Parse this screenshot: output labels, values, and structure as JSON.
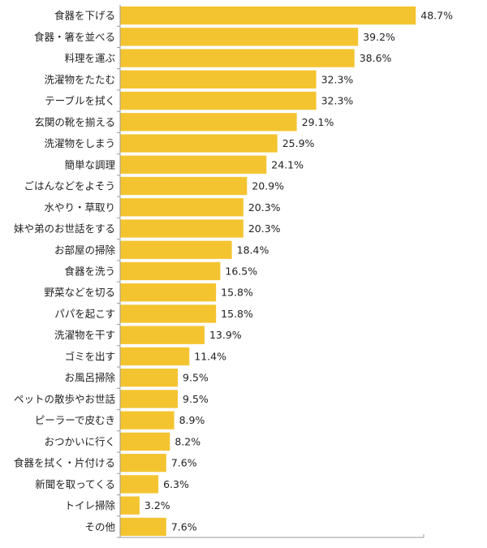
{
  "chart_data": {
    "type": "bar",
    "orientation": "horizontal",
    "categories": [
      "食器を下げる",
      "食器・箸を並べる",
      "料理を運ぶ",
      "洗濯物をたたむ",
      "テーブルを拭く",
      "玄関の靴を揃える",
      "洗濯物をしまう",
      "簡単な調理",
      "ごはんなどをよそう",
      "水やり・草取り",
      "妹や弟のお世話をする",
      "お部屋の掃除",
      "食器を洗う",
      "野菜などを切る",
      "パパを起こす",
      "洗濯物を干す",
      "ゴミを出す",
      "お風呂掃除",
      "ペットの散歩やお世話",
      "ピーラーで皮むき",
      "おつかいに行く",
      "食器を拭く・片付ける",
      "新聞を取ってくる",
      "トイレ掃除",
      "その他"
    ],
    "values": [
      48.7,
      39.2,
      38.6,
      32.3,
      32.3,
      29.1,
      25.9,
      24.1,
      20.9,
      20.3,
      20.3,
      18.4,
      16.5,
      15.8,
      15.8,
      13.9,
      11.4,
      9.5,
      9.5,
      8.9,
      8.2,
      7.6,
      6.3,
      3.2,
      7.6
    ],
    "value_labels": [
      "48.7%",
      "39.2%",
      "38.6%",
      "32.3%",
      "32.3%",
      "29.1%",
      "25.9%",
      "24.1%",
      "20.9%",
      "20.3%",
      "20.3%",
      "18.4%",
      "16.5%",
      "15.8%",
      "15.8%",
      "13.9%",
      "11.4%",
      "9.5%",
      "9.5%",
      "8.9%",
      "8.2%",
      "7.6%",
      "6.3%",
      "3.2%",
      "7.6%"
    ],
    "unit": "%",
    "xlim": [
      0,
      50
    ],
    "title": "",
    "xlabel": "",
    "ylabel": "",
    "grid": false,
    "legend": "none",
    "bar_color": "#F4C430",
    "axis_color": "#9a9a9a"
  }
}
